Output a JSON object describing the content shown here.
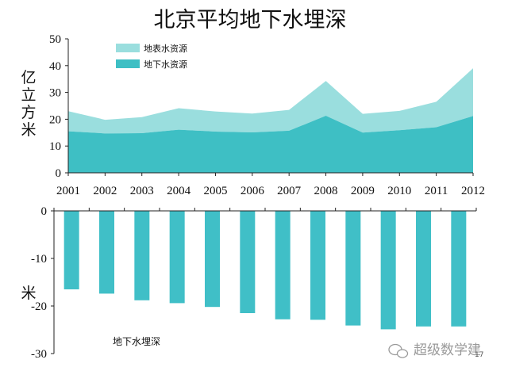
{
  "title": "北京平均地下水埋深",
  "colors": {
    "surface": "#9ADEDE",
    "ground": "#3EBFC4",
    "bar": "#40BFC7",
    "axis": "#222222"
  },
  "chart_data": [
    {
      "type": "area",
      "stacked": true,
      "x": [
        "2001",
        "2002",
        "2003",
        "2004",
        "2005",
        "2006",
        "2007",
        "2008",
        "2009",
        "2010",
        "2011",
        "2012"
      ],
      "series": [
        {
          "name": "地下水资源",
          "values": [
            15.5,
            14.7,
            14.8,
            16.1,
            15.4,
            15.1,
            15.7,
            21.3,
            15.0,
            15.9,
            17.0,
            21.2
          ]
        },
        {
          "name": "地表水资源",
          "values": [
            7.5,
            5.1,
            6.0,
            8.0,
            7.5,
            7.0,
            7.8,
            13.0,
            7.0,
            7.2,
            9.5,
            17.8
          ]
        }
      ],
      "ylabel": "亿立方米",
      "ylim": [
        0,
        50
      ],
      "yticks": [
        "0",
        "10",
        "20",
        "30",
        "40",
        "50"
      ],
      "legend": "top-left",
      "grid": false
    },
    {
      "type": "bar",
      "x": [
        "2001",
        "2002",
        "2003",
        "2004",
        "2005",
        "2006",
        "2007",
        "2008",
        "2009",
        "2010",
        "2011",
        "2012"
      ],
      "values": [
        -16.5,
        -17.4,
        -18.8,
        -19.4,
        -20.2,
        -21.5,
        -22.8,
        -22.9,
        -24.1,
        -24.9,
        -24.3,
        -24.3
      ],
      "ylabel": "米",
      "ylim": [
        -30,
        0
      ],
      "yticks": [
        "0",
        "-10",
        "-20",
        "-30"
      ],
      "annotation": "地下水埋深",
      "grid": false
    }
  ],
  "watermark": {
    "text": "超级数学建",
    "icon": "wechat-icon"
  },
  "page_number": "17"
}
